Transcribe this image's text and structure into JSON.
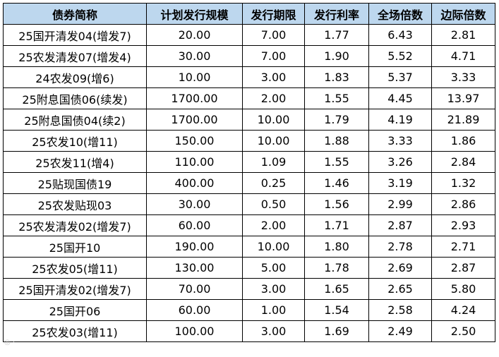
{
  "table": {
    "headers": [
      "债券简称",
      "计划发行规模",
      "发行期限",
      "发行利率",
      "全场倍数",
      "边际倍数"
    ],
    "rows": [
      [
        "25国开清发04(增发7)",
        "20.00",
        "7.00",
        "1.77",
        "6.43",
        "2.81"
      ],
      [
        "25农发清发07(增发4)",
        "30.00",
        "7.00",
        "1.90",
        "5.52",
        "4.71"
      ],
      [
        "24农发09(增6)",
        "10.00",
        "3.00",
        "1.83",
        "5.37",
        "3.33"
      ],
      [
        "25附息国债06(续发)",
        "1700.00",
        "2.00",
        "1.55",
        "4.45",
        "13.97"
      ],
      [
        "25附息国债04(续2)",
        "1700.00",
        "10.00",
        "1.79",
        "4.19",
        "21.89"
      ],
      [
        "25农发10(增11)",
        "150.00",
        "10.00",
        "1.88",
        "3.33",
        "1.86"
      ],
      [
        "25农发11(增4)",
        "110.00",
        "1.09",
        "1.55",
        "3.26",
        "2.84"
      ],
      [
        "25贴现国债19",
        "400.00",
        "0.25",
        "1.46",
        "3.19",
        "1.32"
      ],
      [
        "25农发贴现03",
        "30.00",
        "0.50",
        "1.56",
        "2.99",
        "2.86"
      ],
      [
        "25农发清发02(增发7)",
        "60.00",
        "2.00",
        "1.71",
        "2.87",
        "2.93"
      ],
      [
        "25国开10",
        "190.00",
        "10.00",
        "1.80",
        "2.78",
        "2.71"
      ],
      [
        "25农发05(增11)",
        "130.00",
        "5.00",
        "1.78",
        "2.69",
        "2.87"
      ],
      [
        "25国开清发02(增发7)",
        "70.00",
        "3.00",
        "1.65",
        "2.65",
        "5.80"
      ],
      [
        "25国开06",
        "60.00",
        "1.00",
        "1.54",
        "2.58",
        "4.24"
      ],
      [
        "25农发03(增11)",
        "100.00",
        "3.00",
        "1.69",
        "2.49",
        "2.50"
      ]
    ]
  },
  "colors": {
    "header_bg": "#bdd7ee",
    "border": "#000000",
    "text": "#000000"
  }
}
